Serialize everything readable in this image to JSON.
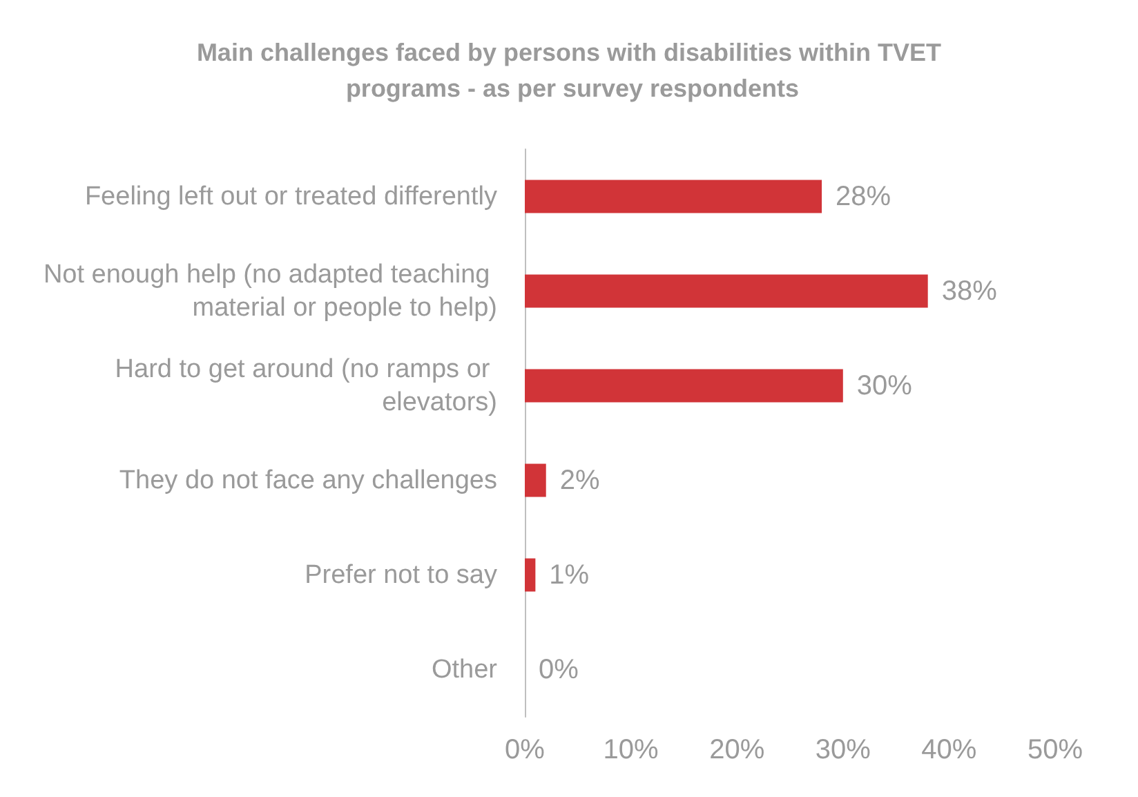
{
  "chart_data": {
    "type": "bar",
    "orientation": "horizontal",
    "title": "Main challenges faced by persons with disabilities within TVET programs - as per survey respondents",
    "categories": [
      "Feeling left out or treated differently",
      "Not enough help (no adapted teaching material or people to help)",
      "Hard to get around (no ramps or elevators)",
      "They do not face any challenges",
      "Prefer not to say",
      "Other"
    ],
    "values": [
      28,
      38,
      30,
      2,
      1,
      0
    ],
    "value_labels": [
      "28%",
      "38%",
      "30%",
      "2%",
      "1%",
      "0%"
    ],
    "color": "#d13438",
    "xlim": [
      0,
      50
    ],
    "xticks": [
      {
        "value": 0,
        "label": "0%"
      },
      {
        "value": 10,
        "label": "10%"
      },
      {
        "value": 20,
        "label": "20%"
      },
      {
        "value": 30,
        "label": "30%"
      },
      {
        "value": 40,
        "label": "40%"
      },
      {
        "value": 50,
        "label": "50%"
      }
    ],
    "grid": false
  }
}
